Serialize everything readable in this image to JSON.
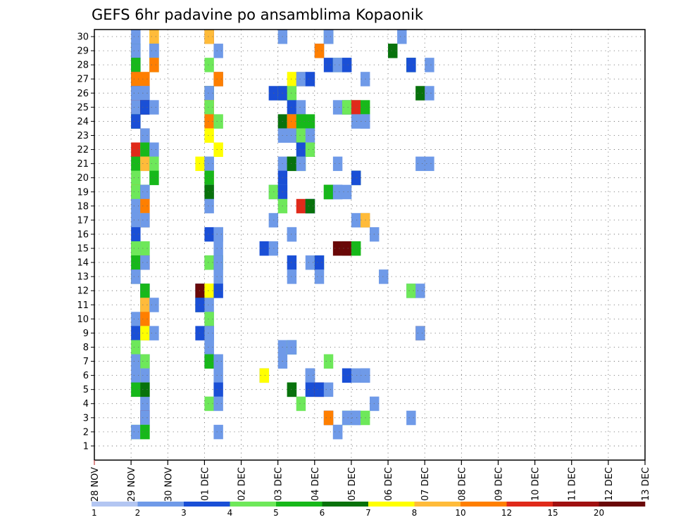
{
  "chart_data": {
    "type": "heatmap",
    "title": "GEFS 6hr padavine po ansamblima Kopaonik",
    "xlabel": "",
    "ylabel": "",
    "y_range": [
      0,
      30
    ],
    "y_ticks": [
      "1",
      "2",
      "3",
      "4",
      "5",
      "6",
      "7",
      "8",
      "9",
      "10",
      "11",
      "12",
      "13",
      "14",
      "15",
      "16",
      "17",
      "18",
      "19",
      "20",
      "21",
      "22",
      "23",
      "24",
      "25",
      "26",
      "27",
      "28",
      "29",
      "30"
    ],
    "x_ticks": [
      "28 NOV",
      "29 NOV",
      "30 NOV",
      "01 DEC",
      "02 DEC",
      "03 DEC",
      "04 DEC",
      "05 DEC",
      "06 DEC",
      "07 DEC",
      "08 DEC",
      "09 DEC",
      "10 DEC",
      "11 DEC",
      "12 DEC",
      "13 DEC"
    ],
    "x_start": "28 NOV 00Z",
    "x_step_hours": 6,
    "grid": true,
    "legend_placement": "bottom",
    "colorbar": {
      "boundaries": [
        "1",
        "2",
        "3",
        "4",
        "5",
        "6",
        "7",
        "8",
        "10",
        "12",
        "15",
        "20"
      ],
      "colors": [
        "#b3c6f2",
        "#6f9ae8",
        "#1a4fd6",
        "#6ee85a",
        "#17b81a",
        "#08720c",
        "#ffff00",
        "#ffbb3a",
        "#ff7f00",
        "#e02a1a",
        "#a01010",
        "#6a0808"
      ]
    },
    "cells": [
      [
        30,
        4,
        1
      ],
      [
        30,
        6,
        6
      ],
      [
        30,
        6,
        7
      ],
      [
        30,
        12,
        10
      ],
      [
        30,
        12,
        7
      ],
      [
        30,
        20,
        1
      ],
      [
        30,
        25,
        3
      ],
      [
        30,
        25,
        2
      ],
      [
        30,
        25,
        1
      ],
      [
        30,
        33,
        1
      ],
      [
        29,
        4,
        5
      ],
      [
        29,
        4,
        1
      ],
      [
        29,
        6,
        2
      ],
      [
        29,
        6,
        1
      ],
      [
        29,
        13,
        1
      ],
      [
        29,
        24,
        2
      ],
      [
        29,
        24,
        8
      ],
      [
        29,
        32,
        4
      ],
      [
        29,
        32,
        5
      ],
      [
        28,
        4,
        2
      ],
      [
        28,
        4,
        4
      ],
      [
        28,
        6,
        3
      ],
      [
        28,
        6,
        8
      ],
      [
        28,
        12,
        3
      ],
      [
        28,
        25,
        2
      ],
      [
        28,
        26,
        1
      ],
      [
        28,
        26,
        3
      ],
      [
        28,
        26,
        1
      ],
      [
        28,
        27,
        1
      ],
      [
        28,
        27,
        2
      ],
      [
        28,
        34,
        4
      ],
      [
        28,
        34,
        2
      ],
      [
        28,
        36,
        1
      ],
      [
        27,
        4,
        2
      ],
      [
        27,
        4,
        8
      ],
      [
        27,
        5,
        8
      ],
      [
        27,
        13,
        1
      ],
      [
        27,
        13,
        8
      ],
      [
        27,
        21,
        6
      ],
      [
        27,
        22,
        7
      ],
      [
        27,
        22,
        1
      ],
      [
        27,
        23,
        2
      ],
      [
        27,
        29,
        1
      ],
      [
        26,
        4,
        2
      ],
      [
        26,
        4,
        1
      ],
      [
        26,
        5,
        1
      ],
      [
        26,
        5,
        1
      ],
      [
        26,
        12,
        5
      ],
      [
        26,
        12,
        1
      ],
      [
        26,
        19,
        2
      ],
      [
        26,
        20,
        3
      ],
      [
        26,
        20,
        2
      ],
      [
        26,
        21,
        3
      ],
      [
        26,
        35,
        5
      ],
      [
        26,
        36,
        1
      ],
      [
        25,
        4,
        9
      ],
      [
        25,
        4,
        1
      ],
      [
        25,
        5,
        1
      ],
      [
        25,
        5,
        11
      ],
      [
        25,
        5,
        2
      ],
      [
        25,
        6,
        1
      ],
      [
        25,
        12,
        7
      ],
      [
        25,
        12,
        8
      ],
      [
        25,
        12,
        3
      ],
      [
        25,
        21,
        2
      ],
      [
        25,
        22,
        1
      ],
      [
        25,
        26,
        1
      ],
      [
        25,
        27,
        2
      ],
      [
        25,
        27,
        3
      ],
      [
        25,
        28,
        4
      ],
      [
        25,
        28,
        9
      ],
      [
        25,
        29,
        4
      ],
      [
        24,
        4,
        4
      ],
      [
        24,
        4,
        2
      ],
      [
        24,
        12,
        3
      ],
      [
        24,
        12,
        8
      ],
      [
        24,
        13,
        3
      ],
      [
        24,
        20,
        5
      ],
      [
        24,
        21,
        6
      ],
      [
        24,
        21,
        8
      ],
      [
        24,
        22,
        8
      ],
      [
        24,
        22,
        4
      ],
      [
        24,
        23,
        4
      ],
      [
        24,
        28,
        1
      ],
      [
        24,
        29,
        1
      ],
      [
        24,
        29,
        1
      ],
      [
        23,
        5,
        8
      ],
      [
        23,
        5,
        1
      ],
      [
        23,
        12,
        6
      ],
      [
        23,
        20,
        1
      ],
      [
        23,
        21,
        1
      ],
      [
        23,
        22,
        2
      ],
      [
        23,
        22,
        3
      ],
      [
        23,
        23,
        1
      ],
      [
        22,
        4,
        9
      ],
      [
        22,
        5,
        12
      ],
      [
        22,
        5,
        4
      ],
      [
        22,
        6,
        1
      ],
      [
        22,
        13,
        6
      ],
      [
        22,
        22,
        2
      ],
      [
        22,
        23,
        3
      ],
      [
        21,
        4,
        4
      ],
      [
        21,
        5,
        3
      ],
      [
        21,
        5,
        7
      ],
      [
        21,
        6,
        3
      ],
      [
        21,
        11,
        6
      ],
      [
        21,
        12,
        1
      ],
      [
        21,
        12,
        1
      ],
      [
        21,
        20,
        1
      ],
      [
        21,
        21,
        4
      ],
      [
        21,
        21,
        5
      ],
      [
        21,
        22,
        4
      ],
      [
        21,
        22,
        1
      ],
      [
        21,
        26,
        1
      ],
      [
        21,
        35,
        1
      ],
      [
        21,
        36,
        1
      ],
      [
        20,
        4,
        3
      ],
      [
        20,
        6,
        4
      ],
      [
        20,
        12,
        7
      ],
      [
        20,
        12,
        4
      ],
      [
        20,
        20,
        2
      ],
      [
        20,
        28,
        5
      ],
      [
        20,
        28,
        2
      ],
      [
        19,
        4,
        8
      ],
      [
        19,
        4,
        3
      ],
      [
        19,
        5,
        4
      ],
      [
        19,
        5,
        1
      ],
      [
        19,
        12,
        1
      ],
      [
        19,
        12,
        5
      ],
      [
        19,
        19,
        1
      ],
      [
        19,
        19,
        3
      ],
      [
        19,
        20,
        1
      ],
      [
        19,
        20,
        2
      ],
      [
        19,
        25,
        5
      ],
      [
        19,
        25,
        4
      ],
      [
        19,
        26,
        2
      ],
      [
        19,
        26,
        1
      ],
      [
        19,
        27,
        1
      ],
      [
        18,
        4,
        1
      ],
      [
        18,
        5,
        8
      ],
      [
        18,
        12,
        1
      ],
      [
        18,
        20,
        3
      ],
      [
        18,
        22,
        9
      ],
      [
        18,
        23,
        2
      ],
      [
        18,
        23,
        5
      ],
      [
        17,
        4,
        1
      ],
      [
        17,
        5,
        7
      ],
      [
        17,
        5,
        1
      ],
      [
        17,
        19,
        1
      ],
      [
        17,
        28,
        1
      ],
      [
        17,
        29,
        1
      ],
      [
        17,
        29,
        7
      ],
      [
        16,
        4,
        2
      ],
      [
        16,
        12,
        2
      ],
      [
        16,
        13,
        1
      ],
      [
        16,
        13,
        1
      ],
      [
        16,
        21,
        1
      ],
      [
        16,
        21,
        1
      ],
      [
        16,
        30,
        1
      ],
      [
        15,
        4,
        4
      ],
      [
        15,
        4,
        3
      ],
      [
        15,
        5,
        1
      ],
      [
        15,
        5,
        3
      ],
      [
        15,
        13,
        1
      ],
      [
        15,
        18,
        1
      ],
      [
        15,
        18,
        2
      ],
      [
        15,
        19,
        1
      ],
      [
        15,
        26,
        11
      ],
      [
        15,
        27,
        11
      ],
      [
        15,
        27,
        5
      ],
      [
        15,
        27,
        11
      ],
      [
        15,
        28,
        3
      ],
      [
        15,
        28,
        4
      ],
      [
        14,
        4,
        4
      ],
      [
        14,
        5,
        9
      ],
      [
        14,
        5,
        1
      ],
      [
        14,
        12,
        4
      ],
      [
        14,
        12,
        3
      ],
      [
        14,
        13,
        4
      ],
      [
        14,
        13,
        1
      ],
      [
        14,
        21,
        2
      ],
      [
        14,
        23,
        1
      ],
      [
        14,
        24,
        3
      ],
      [
        14,
        24,
        2
      ],
      [
        13,
        4,
        5
      ],
      [
        13,
        4,
        1
      ],
      [
        13,
        13,
        1
      ],
      [
        13,
        21,
        1
      ],
      [
        13,
        24,
        1
      ],
      [
        13,
        31,
        1
      ],
      [
        12,
        5,
        2
      ],
      [
        12,
        5,
        4
      ],
      [
        12,
        11,
        2
      ],
      [
        12,
        11,
        11
      ],
      [
        12,
        12,
        6
      ],
      [
        12,
        12,
        6
      ],
      [
        12,
        13,
        2
      ],
      [
        12,
        34,
        1
      ],
      [
        12,
        34,
        3
      ],
      [
        12,
        35,
        1
      ],
      [
        11,
        5,
        4
      ],
      [
        11,
        5,
        7
      ],
      [
        11,
        6,
        1
      ],
      [
        11,
        11,
        5
      ],
      [
        11,
        11,
        2
      ],
      [
        11,
        12,
        1
      ],
      [
        10,
        4,
        1
      ],
      [
        10,
        5,
        8
      ],
      [
        10,
        12,
        1
      ],
      [
        10,
        12,
        3
      ],
      [
        9,
        4,
        2
      ],
      [
        9,
        5,
        1
      ],
      [
        9,
        5,
        6
      ],
      [
        9,
        6,
        1
      ],
      [
        9,
        11,
        2
      ],
      [
        9,
        12,
        2
      ],
      [
        9,
        12,
        1
      ],
      [
        9,
        35,
        8
      ],
      [
        9,
        35,
        1
      ],
      [
        8,
        4,
        3
      ],
      [
        8,
        12,
        1
      ],
      [
        8,
        12,
        1
      ],
      [
        8,
        20,
        1
      ],
      [
        8,
        21,
        1
      ],
      [
        8,
        21,
        3
      ],
      [
        8,
        21,
        1
      ],
      [
        7,
        4,
        1
      ],
      [
        7,
        5,
        2
      ],
      [
        7,
        5,
        3
      ],
      [
        7,
        12,
        2
      ],
      [
        7,
        12,
        4
      ],
      [
        7,
        13,
        1
      ],
      [
        7,
        20,
        1
      ],
      [
        7,
        25,
        3
      ],
      [
        6,
        4,
        1
      ],
      [
        6,
        5,
        6
      ],
      [
        6,
        5,
        1
      ],
      [
        6,
        13,
        1
      ],
      [
        6,
        18,
        2
      ],
      [
        6,
        18,
        6
      ],
      [
        6,
        23,
        2
      ],
      [
        6,
        23,
        1
      ],
      [
        6,
        27,
        1
      ],
      [
        6,
        27,
        2
      ],
      [
        6,
        28,
        1
      ],
      [
        6,
        29,
        2
      ],
      [
        6,
        29,
        1
      ],
      [
        5,
        4,
        4
      ],
      [
        5,
        5,
        3
      ],
      [
        5,
        13,
        2
      ],
      [
        5,
        21,
        4
      ],
      [
        5,
        21,
        5
      ],
      [
        5,
        23,
        1
      ],
      [
        5,
        23,
        2
      ],
      [
        5,
        24,
        10
      ],
      [
        5,
        24,
        2
      ],
      [
        5,
        25,
        1
      ],
      [
        4,
        5,
        1
      ],
      [
        5,
        5,
        5
      ],
      [
        4,
        12,
        3
      ],
      [
        4,
        13,
        1
      ],
      [
        4,
        22,
        3
      ],
      [
        4,
        30,
        1
      ],
      [
        3,
        5,
        10
      ],
      [
        3,
        5,
        1
      ],
      [
        3,
        25,
        2
      ],
      [
        3,
        25,
        8
      ],
      [
        3,
        27,
        3
      ],
      [
        3,
        27,
        1
      ],
      [
        3,
        28,
        1
      ],
      [
        3,
        28,
        1
      ],
      [
        3,
        29,
        3
      ],
      [
        3,
        34,
        1
      ],
      [
        2,
        4,
        3
      ],
      [
        2,
        4,
        1
      ],
      [
        2,
        5,
        3
      ],
      [
        2,
        5,
        4
      ],
      [
        2,
        13,
        1
      ],
      [
        2,
        26,
        1
      ],
      [
        2,
        26,
        1
      ]
    ]
  }
}
